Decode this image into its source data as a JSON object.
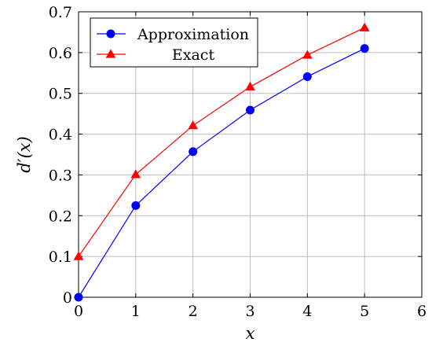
{
  "chart_data": {
    "type": "line",
    "title": "",
    "xlabel": "x",
    "ylabel": "d′(x)",
    "xlim": [
      0,
      6
    ],
    "ylim": [
      0,
      0.7
    ],
    "xticks": [
      "0",
      "1",
      "2",
      "3",
      "4",
      "5",
      "6"
    ],
    "yticks": [
      "0",
      "0.1",
      "0.2",
      "0.3",
      "0.4",
      "0.5",
      "0.6",
      "0.7"
    ],
    "grid": true,
    "legend_position": "top-left",
    "series": [
      {
        "name": "Approximation",
        "color": "#0000ff",
        "marker": "circle",
        "x": [
          0,
          1,
          2,
          3,
          4,
          5
        ],
        "y": [
          0,
          0.225,
          0.357,
          0.459,
          0.541,
          0.61
        ]
      },
      {
        "name": "Exact",
        "color": "#ff0000",
        "marker": "triangle",
        "x": [
          0,
          1,
          2,
          3,
          4,
          5
        ],
        "y": [
          0.1,
          0.301,
          0.421,
          0.516,
          0.594,
          0.661
        ]
      }
    ]
  }
}
